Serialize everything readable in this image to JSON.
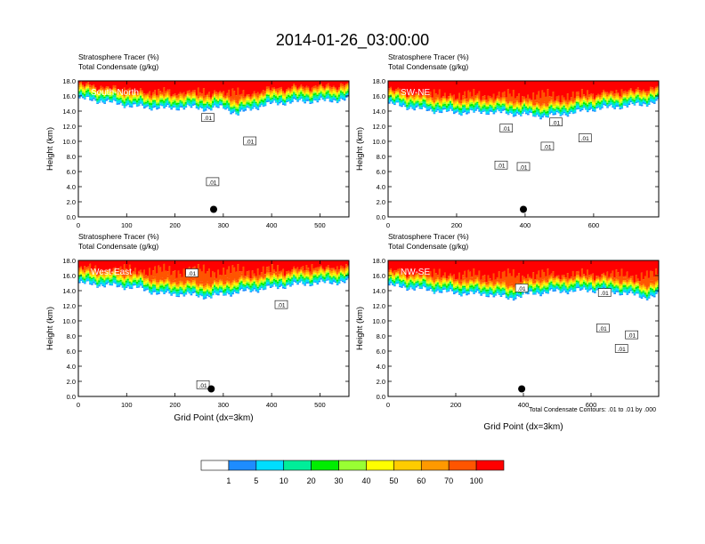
{
  "title": "2014-01-26_03:00:00",
  "footnote": "Total Condensate Contours: .01 to .01 by .000",
  "chart_data": [
    {
      "type": "heatmap",
      "panel_label": "South-North",
      "subtitle_lines": [
        "Stratosphere Tracer   (%)",
        "Total Condensate   (g/kg)"
      ],
      "ylabel": "Height (km)",
      "xlabel": "",
      "xlim": [
        0,
        560
      ],
      "ylim": [
        0,
        18
      ],
      "x_ticks": [
        0,
        100,
        200,
        300,
        400,
        500
      ],
      "y_ticks": [
        "0.0",
        "2.0",
        "4.0",
        "6.0",
        "8.0",
        "10.0",
        "12.0",
        "14.0",
        "16.0",
        "18.0"
      ],
      "tracer_front_height": [
        [
          0,
          15.7
        ],
        [
          60,
          15.2
        ],
        [
          120,
          14.6
        ],
        [
          180,
          14.4
        ],
        [
          230,
          14.5
        ],
        [
          270,
          14.3
        ],
        [
          300,
          14.5
        ],
        [
          330,
          13.6
        ],
        [
          360,
          14.4
        ],
        [
          400,
          15.0
        ],
        [
          460,
          15.3
        ],
        [
          520,
          15.4
        ],
        [
          560,
          15.6
        ]
      ],
      "tropopause_height": 16.2,
      "marker": {
        "x": 280,
        "y": 1.0
      },
      "contour_labels": [
        {
          "text": ".01",
          "x": 268,
          "y": 13.1
        },
        {
          "text": ".01",
          "x": 355,
          "y": 10.0
        },
        {
          "text": ".01",
          "x": 278,
          "y": 4.6
        }
      ]
    },
    {
      "type": "heatmap",
      "panel_label": "SW-NE",
      "subtitle_lines": [
        "Stratosphere Tracer   (%)",
        "Total Condensate   (g/kg)"
      ],
      "ylabel": "Height (km)",
      "xlabel": "",
      "xlim": [
        0,
        790
      ],
      "ylim": [
        0,
        18
      ],
      "x_ticks": [
        0,
        200,
        400,
        600
      ],
      "y_ticks": [
        "0.0",
        "2.0",
        "4.0",
        "6.0",
        "8.0",
        "10.0",
        "12.0",
        "14.0",
        "16.0",
        "18.0"
      ],
      "tracer_front_height": [
        [
          0,
          15.0
        ],
        [
          100,
          14.2
        ],
        [
          200,
          13.8
        ],
        [
          300,
          13.9
        ],
        [
          380,
          13.6
        ],
        [
          460,
          13.3
        ],
        [
          540,
          13.8
        ],
        [
          600,
          14.3
        ],
        [
          700,
          14.7
        ],
        [
          790,
          15.2
        ]
      ],
      "tropopause_height": 16.0,
      "marker": {
        "x": 395,
        "y": 1.0
      },
      "contour_labels": [
        {
          "text": ".01",
          "x": 345,
          "y": 11.7
        },
        {
          "text": ".01",
          "x": 490,
          "y": 12.5
        },
        {
          "text": ".01",
          "x": 465,
          "y": 9.3
        },
        {
          "text": ".01",
          "x": 575,
          "y": 10.4
        },
        {
          "text": ".01",
          "x": 330,
          "y": 6.8
        },
        {
          "text": ".01",
          "x": 395,
          "y": 6.6
        }
      ]
    },
    {
      "type": "heatmap",
      "panel_label": "West-East",
      "subtitle_lines": [
        "Stratosphere Tracer   (%)",
        "Total Condensate   (g/kg)"
      ],
      "ylabel": "Height (km)",
      "xlabel": "Grid Point (dx=3km)",
      "xlim": [
        0,
        560
      ],
      "ylim": [
        0,
        18
      ],
      "x_ticks": [
        0,
        100,
        200,
        300,
        400,
        500
      ],
      "y_ticks": [
        "0.0",
        "2.0",
        "4.0",
        "6.0",
        "8.0",
        "10.0",
        "12.0",
        "14.0",
        "16.0",
        "18.0"
      ],
      "tracer_front_height": [
        [
          0,
          15.0
        ],
        [
          60,
          14.7
        ],
        [
          120,
          14.4
        ],
        [
          170,
          13.6
        ],
        [
          220,
          13.5
        ],
        [
          270,
          13.2
        ],
        [
          330,
          13.8
        ],
        [
          400,
          14.4
        ],
        [
          460,
          14.9
        ],
        [
          520,
          15.1
        ],
        [
          560,
          15.2
        ]
      ],
      "tropopause_height": 16.6,
      "marker": {
        "x": 275,
        "y": 1.0
      },
      "contour_labels": [
        {
          "text": ".01",
          "x": 235,
          "y": 16.3
        },
        {
          "text": ".01",
          "x": 420,
          "y": 12.1
        },
        {
          "text": ".01",
          "x": 258,
          "y": 1.5
        }
      ]
    },
    {
      "type": "heatmap",
      "panel_label": "NW-SE",
      "subtitle_lines": [
        "Stratosphere Tracer   (%)",
        "Total Condensate   (g/kg)"
      ],
      "ylabel": "Height (km)",
      "xlabel": "Grid Point (dx=3km)",
      "xlim": [
        0,
        800
      ],
      "ylim": [
        0,
        18
      ],
      "x_ticks": [
        0,
        200,
        400,
        600
      ],
      "y_ticks": [
        "0.0",
        "2.0",
        "4.0",
        "6.0",
        "8.0",
        "10.0",
        "12.0",
        "14.0",
        "16.0",
        "18.0"
      ],
      "tracer_front_height": [
        [
          0,
          14.7
        ],
        [
          100,
          14.2
        ],
        [
          200,
          13.7
        ],
        [
          300,
          13.5
        ],
        [
          360,
          13.0
        ],
        [
          420,
          13.6
        ],
        [
          500,
          13.9
        ],
        [
          600,
          14.1
        ],
        [
          700,
          13.7
        ],
        [
          760,
          13.1
        ],
        [
          800,
          13.4
        ]
      ],
      "tropopause_height": 16.0,
      "marker": {
        "x": 395,
        "y": 1.0
      },
      "contour_labels": [
        {
          "text": ".01",
          "x": 395,
          "y": 14.3
        },
        {
          "text": ".01",
          "x": 640,
          "y": 13.7
        },
        {
          "text": ".01",
          "x": 635,
          "y": 9.0
        },
        {
          "text": ".01",
          "x": 720,
          "y": 8.1
        },
        {
          "text": ".01",
          "x": 690,
          "y": 6.3
        }
      ]
    }
  ],
  "colorbar": {
    "labels": [
      "1",
      "5",
      "10",
      "20",
      "30",
      "40",
      "50",
      "60",
      "70",
      "100"
    ],
    "colors": [
      "#ffffff",
      "#1e8cff",
      "#00ddff",
      "#00ee99",
      "#00ee00",
      "#99ff33",
      "#ffff00",
      "#ffcc00",
      "#ff9900",
      "#ff5500",
      "#ff0000"
    ]
  },
  "line_color": "#000000"
}
